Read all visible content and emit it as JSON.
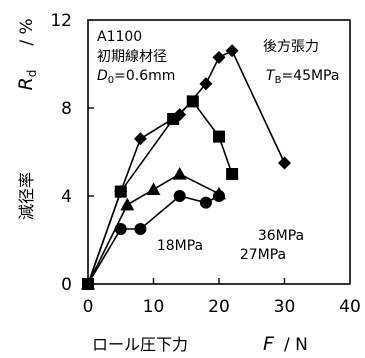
{
  "chart_data": {
    "type": "line",
    "xlabel_jp": "ロール圧下力",
    "xlabel_var": "F",
    "xlabel_unit": "/ N",
    "ylabel_jp": "減径率",
    "ylabel_var": "R",
    "ylabel_sub": "d",
    "ylabel_unit": "/ %",
    "xlim": [
      0,
      40
    ],
    "ylim": [
      0,
      12
    ],
    "x_ticks": [
      "0",
      "10",
      "20",
      "30",
      "40"
    ],
    "y_ticks": [
      "0",
      "4",
      "8",
      "12"
    ],
    "annotations": {
      "material": "A1100",
      "diameter_label": "初期線材径",
      "diameter_value": "D",
      "diameter_sub": "0",
      "diameter_rest": "=0.6mm",
      "tension_title": "後方張力",
      "tension_var": "T",
      "tension_sub": "B",
      "tension_rest": "=45MPa"
    },
    "series": [
      {
        "label": "45MPa",
        "marker": "diamond",
        "x": [
          0,
          5,
          8,
          14,
          18,
          20,
          22,
          30
        ],
        "y": [
          0,
          4.2,
          6.6,
          7.7,
          9.1,
          10.3,
          10.6,
          5.5
        ]
      },
      {
        "label": "36MPa",
        "marker": "square",
        "x": [
          0,
          5,
          13,
          16,
          20,
          22
        ],
        "y": [
          0,
          4.2,
          7.5,
          8.3,
          6.7,
          5.0
        ]
      },
      {
        "label": "27MPa",
        "marker": "triangle",
        "x": [
          0,
          6,
          10,
          14,
          20
        ],
        "y": [
          0,
          3.6,
          4.3,
          5.0,
          4.1
        ]
      },
      {
        "label": "18MPa",
        "marker": "circle",
        "x": [
          0,
          5,
          8,
          14,
          18,
          20
        ],
        "y": [
          0,
          2.5,
          2.5,
          4.0,
          3.7,
          4.0
        ]
      }
    ],
    "grid": false
  }
}
